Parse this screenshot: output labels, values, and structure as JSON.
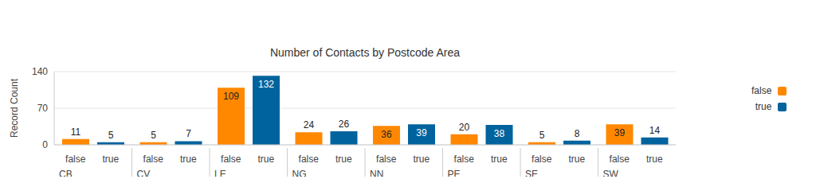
{
  "chart_data": {
    "type": "bar",
    "title": "Number of Contacts by Postcode Area",
    "y_label": "Record Count",
    "categories": [
      "CB",
      "CV",
      "LE",
      "NG",
      "NN",
      "PE",
      "SE",
      "SW"
    ],
    "series": [
      {
        "name": "false",
        "color": "#FF8800",
        "values": [
          11,
          5,
          109,
          24,
          36,
          20,
          5,
          39
        ]
      },
      {
        "name": "true",
        "color": "#00639E",
        "values": [
          5,
          7,
          132,
          26,
          39,
          38,
          8,
          14
        ]
      }
    ],
    "ylim": [
      0,
      140
    ],
    "yticks": [
      0,
      70,
      140
    ],
    "grid": true,
    "legend": "right",
    "data_labels": true
  }
}
